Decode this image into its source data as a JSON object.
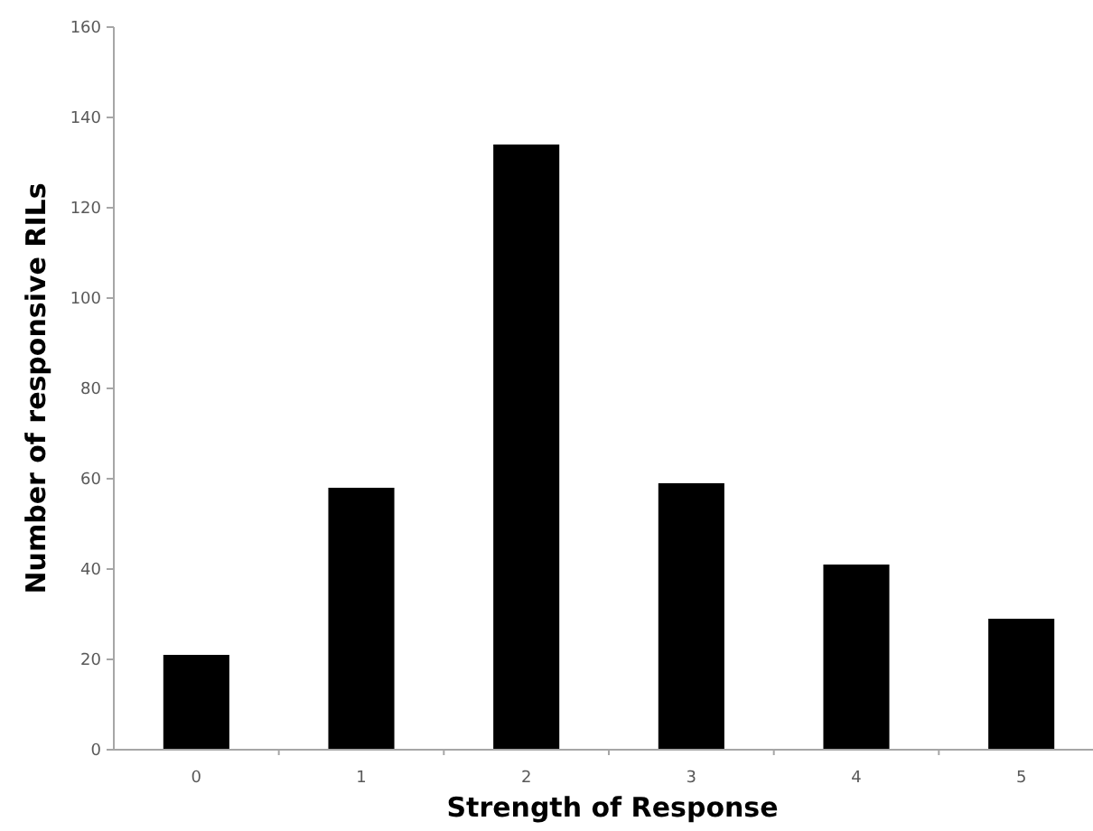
{
  "chart_data": {
    "type": "bar",
    "xlabel": "Strength of Response",
    "ylabel": "Number of responsive RILs",
    "categories": [
      "0",
      "1",
      "2",
      "3",
      "4",
      "5"
    ],
    "values": [
      21,
      58,
      134,
      59,
      41,
      29
    ],
    "color": "#000000",
    "ylim": [
      0,
      160
    ],
    "yticks": [
      0,
      20,
      40,
      60,
      80,
      100,
      120,
      140,
      160
    ],
    "grid": false
  }
}
